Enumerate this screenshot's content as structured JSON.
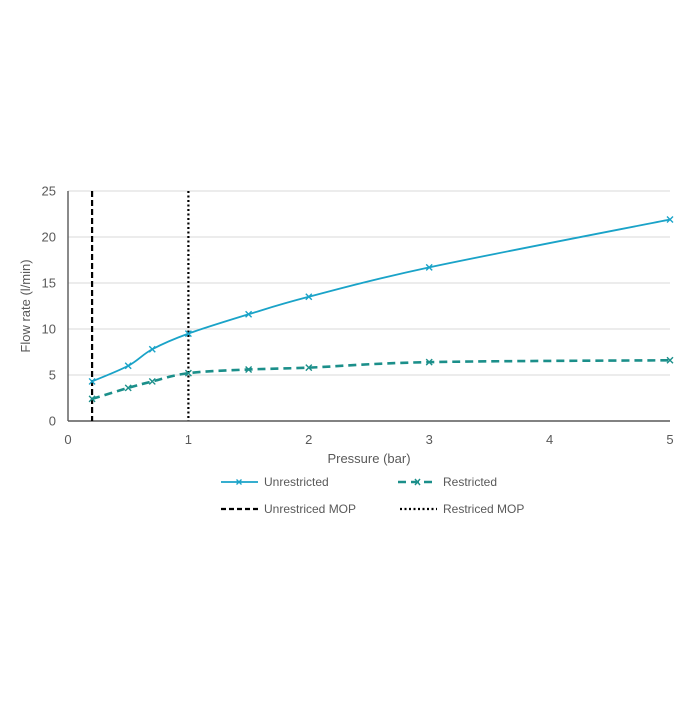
{
  "chart_data": {
    "type": "line",
    "title": "",
    "xlabel": "Pressure (bar)",
    "ylabel": "Flow rate (l/min)",
    "xlim": [
      0,
      5
    ],
    "ylim": [
      0,
      25
    ],
    "xticks": [
      0,
      1,
      2,
      3,
      4,
      5
    ],
    "yticks": [
      0,
      5,
      10,
      15,
      20,
      25
    ],
    "grid": "horizontal",
    "legend_position": "bottom",
    "series": [
      {
        "name": "Unrestricted",
        "style": "solid",
        "marker": "x",
        "color": "#1AA3C8",
        "x": [
          0.2,
          0.5,
          0.7,
          1.0,
          1.5,
          2.0,
          3.0,
          5.0
        ],
        "y": [
          4.3,
          6.0,
          7.8,
          9.5,
          11.6,
          13.5,
          16.7,
          21.9
        ]
      },
      {
        "name": "Restricted",
        "style": "dashed",
        "marker": "x",
        "color": "#1B8F8A",
        "x": [
          0.2,
          0.5,
          0.7,
          1.0,
          1.5,
          2.0,
          3.0,
          5.0
        ],
        "y": [
          2.4,
          3.6,
          4.3,
          5.2,
          5.6,
          5.8,
          6.4,
          6.6
        ]
      }
    ],
    "reference_lines": [
      {
        "name": "Unrestriced MOP",
        "x": 0.2,
        "style": "dashed",
        "color": "#000000"
      },
      {
        "name": "Restriced MOP",
        "x": 1.0,
        "style": "dotted",
        "color": "#000000"
      }
    ]
  }
}
